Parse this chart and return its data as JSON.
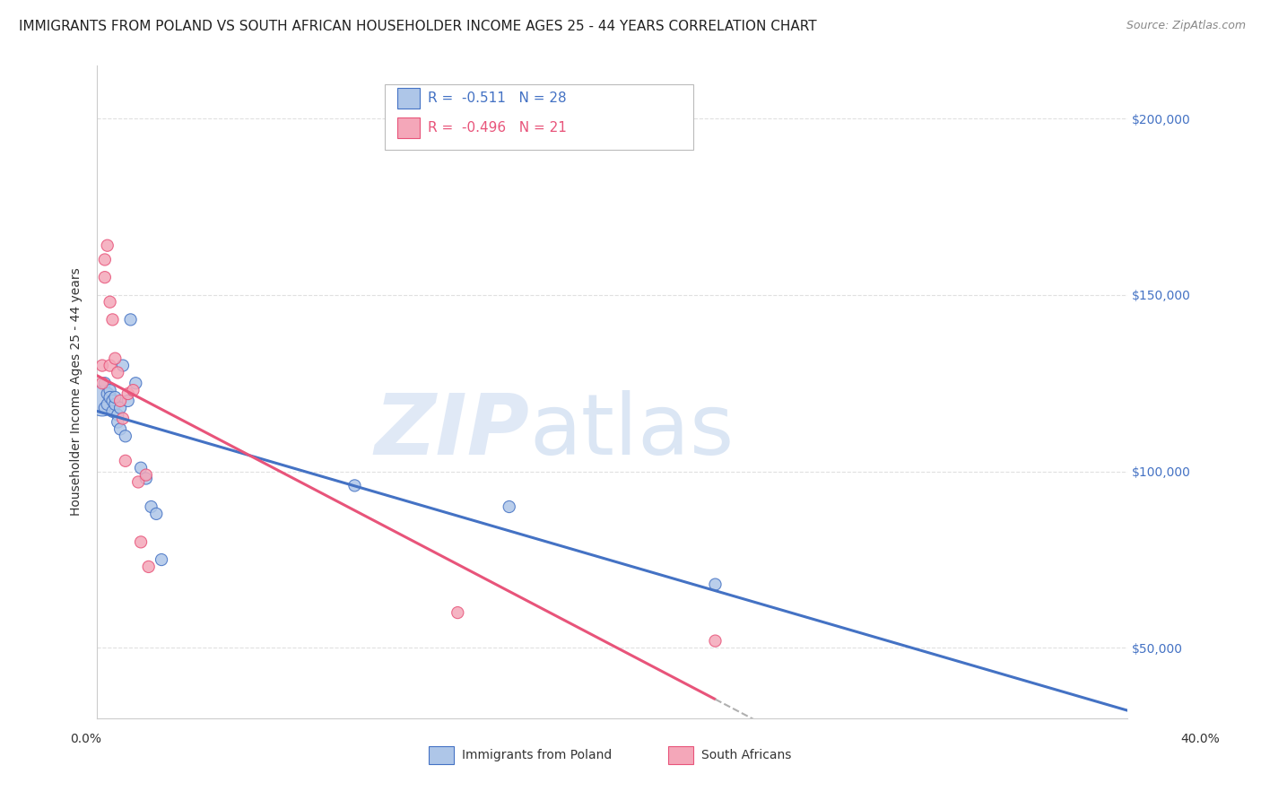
{
  "title": "IMMIGRANTS FROM POLAND VS SOUTH AFRICAN HOUSEHOLDER INCOME AGES 25 - 44 YEARS CORRELATION CHART",
  "source": "Source: ZipAtlas.com",
  "ylabel": "Householder Income Ages 25 - 44 years",
  "yticks": [
    50000,
    100000,
    150000,
    200000
  ],
  "ytick_labels": [
    "$50,000",
    "$100,000",
    "$150,000",
    "$200,000"
  ],
  "xlim": [
    0.0,
    0.4
  ],
  "ylim": [
    30000,
    215000
  ],
  "poland_x": [
    0.002,
    0.003,
    0.003,
    0.004,
    0.004,
    0.005,
    0.005,
    0.006,
    0.006,
    0.007,
    0.007,
    0.008,
    0.008,
    0.009,
    0.009,
    0.01,
    0.011,
    0.012,
    0.013,
    0.015,
    0.017,
    0.019,
    0.021,
    0.023,
    0.025,
    0.1,
    0.16,
    0.24
  ],
  "poland_y": [
    120000,
    125000,
    118000,
    122000,
    119000,
    123000,
    121000,
    120000,
    117000,
    119000,
    121000,
    116000,
    114000,
    118000,
    112000,
    130000,
    110000,
    120000,
    143000,
    125000,
    101000,
    98000,
    90000,
    88000,
    75000,
    96000,
    90000,
    68000
  ],
  "poland_sizes": [
    30,
    30,
    30,
    30,
    30,
    30,
    30,
    30,
    30,
    30,
    30,
    30,
    30,
    30,
    30,
    30,
    30,
    30,
    30,
    30,
    30,
    30,
    30,
    30,
    30,
    30,
    30,
    30
  ],
  "poland_big_idx": 4,
  "sa_x": [
    0.002,
    0.002,
    0.003,
    0.003,
    0.004,
    0.005,
    0.005,
    0.006,
    0.007,
    0.008,
    0.009,
    0.01,
    0.011,
    0.012,
    0.014,
    0.016,
    0.017,
    0.019,
    0.02,
    0.14,
    0.24
  ],
  "sa_y": [
    130000,
    125000,
    160000,
    155000,
    164000,
    148000,
    130000,
    143000,
    132000,
    128000,
    120000,
    115000,
    103000,
    122000,
    123000,
    97000,
    80000,
    99000,
    73000,
    60000,
    52000
  ],
  "sa_sizes": [
    30,
    30,
    30,
    30,
    30,
    30,
    30,
    30,
    30,
    30,
    30,
    30,
    30,
    30,
    30,
    30,
    30,
    30,
    30,
    30,
    30
  ],
  "poland_color": "#aec6e8",
  "poland_line_color": "#4472c4",
  "sa_color": "#f4a7b9",
  "sa_line_color": "#e8547a",
  "background_color": "#ffffff",
  "grid_color": "#e0e0e0",
  "watermark_zip": "ZIP",
  "watermark_atlas": "atlas",
  "xlim_left_label": "0.0%",
  "xlim_right_label": "40.0%",
  "legend_r1": "R =  -0.511",
  "legend_n1": "N = 28",
  "legend_r2": "R =  -0.496",
  "legend_n2": "N = 21",
  "legend_label1": "Immigrants from Poland",
  "legend_label2": "South Africans",
  "title_fontsize": 11,
  "axis_label_fontsize": 10,
  "tick_fontsize": 10,
  "source_fontsize": 9,
  "legend_fontsize": 11
}
